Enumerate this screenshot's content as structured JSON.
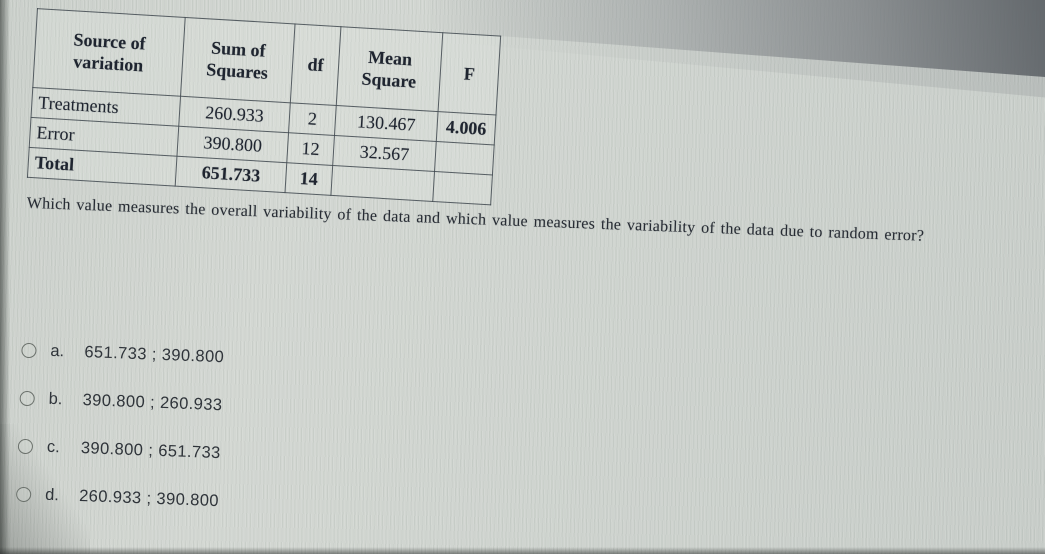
{
  "colors": {
    "page_bg": "#ced3ce",
    "top_right_shadow": "#7a7e82",
    "table_border": "#3e464e",
    "table_text": "#1f2530",
    "question_text": "#272c34",
    "option_text": "#2f343a",
    "radio_outline": "#6b716c"
  },
  "table": {
    "headers": [
      "Source of variation",
      "Sum of Squares",
      "df",
      "Mean Square",
      "F"
    ],
    "rows": [
      {
        "source": "Treatments",
        "sum_of_squares": "260.933",
        "df": "2",
        "mean_square": "130.467",
        "f": "4.006"
      },
      {
        "source": "Error",
        "sum_of_squares": "390.800",
        "df": "12",
        "mean_square": "32.567",
        "f": ""
      },
      {
        "source": "Total",
        "sum_of_squares": "651.733",
        "df": "14",
        "mean_square": "",
        "f": ""
      }
    ]
  },
  "question": "Which value measures the overall variability of the data and which value measures the variability of the data due to random error?",
  "options": [
    {
      "letter": "a.",
      "value": "651.733 ; 390.800"
    },
    {
      "letter": "b.",
      "value": "390.800 ; 260.933"
    },
    {
      "letter": "c.",
      "value": "390.800 ; 651.733"
    },
    {
      "letter": "d.",
      "value": "260.933 ; 390.800"
    }
  ]
}
